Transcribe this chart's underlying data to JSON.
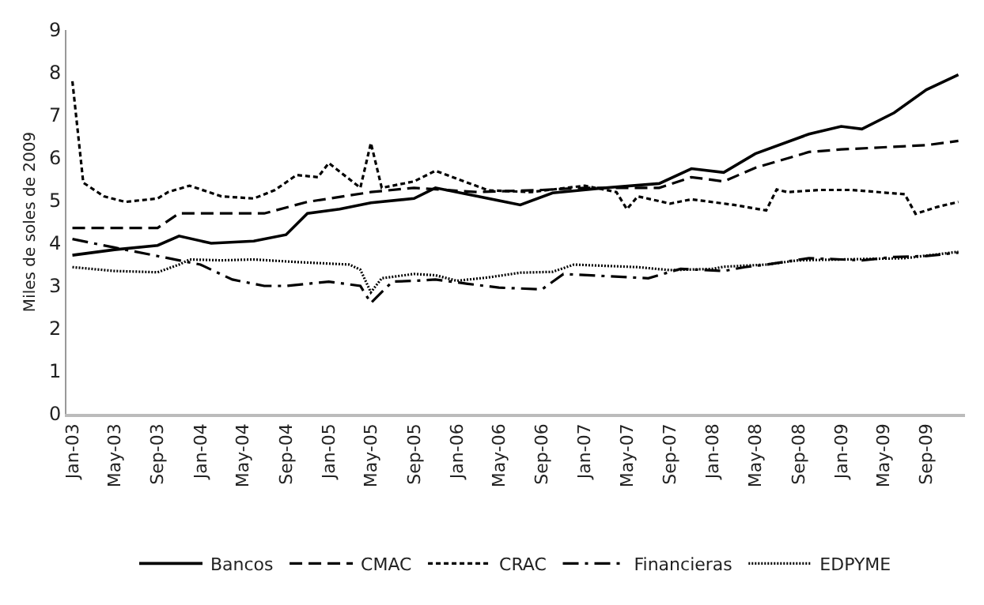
{
  "chart_data": {
    "type": "line",
    "ylabel": "Miles de soles de 2009",
    "ylim": [
      0,
      9
    ],
    "yticks": [
      0,
      1,
      2,
      3,
      4,
      5,
      6,
      7,
      8,
      9
    ],
    "xlim": [
      "2002-12-15",
      "2009-12-20"
    ],
    "xticks": [
      {
        "value": "2003-01",
        "label": "Jan-03"
      },
      {
        "value": "2003-05",
        "label": "May-03"
      },
      {
        "value": "2003-09",
        "label": "Sep-03"
      },
      {
        "value": "2004-01",
        "label": "Jan-04"
      },
      {
        "value": "2004-05",
        "label": "May-04"
      },
      {
        "value": "2004-09",
        "label": "Sep-04"
      },
      {
        "value": "2005-01",
        "label": "Jan-05"
      },
      {
        "value": "2005-05",
        "label": "May-05"
      },
      {
        "value": "2005-09",
        "label": "Sep-05"
      },
      {
        "value": "2006-01",
        "label": "Jan-06"
      },
      {
        "value": "2006-05",
        "label": "May-06"
      },
      {
        "value": "2006-09",
        "label": "Sep-06"
      },
      {
        "value": "2007-01",
        "label": "Jan-07"
      },
      {
        "value": "2007-05",
        "label": "May-07"
      },
      {
        "value": "2007-09",
        "label": "Sep-07"
      },
      {
        "value": "2008-01",
        "label": "Jan-08"
      },
      {
        "value": "2008-05",
        "label": "May-08"
      },
      {
        "value": "2008-09",
        "label": "Sep-08"
      },
      {
        "value": "2009-01",
        "label": "Jan-09"
      },
      {
        "value": "2009-05",
        "label": "May-09"
      },
      {
        "value": "2009-09",
        "label": "Sep-09"
      }
    ],
    "legend": "bottom",
    "marker": "none",
    "series": [
      {
        "name": "Bancos",
        "color": "#000000",
        "line_style": "solid",
        "x": [
          "2003-01",
          "2003-05",
          "2003-09",
          "2003-11",
          "2004-02",
          "2004-06",
          "2004-09",
          "2004-11",
          "2005-02",
          "2005-05",
          "2005-09",
          "2005-11",
          "2006-03",
          "2006-07",
          "2006-10",
          "2007-03",
          "2007-08",
          "2007-11",
          "2008-02",
          "2008-05",
          "2008-10",
          "2009-01",
          "2009-03",
          "2009-06",
          "2009-09",
          "2009-12"
        ],
        "values": [
          3.72,
          3.85,
          3.95,
          4.17,
          4.0,
          4.05,
          4.2,
          4.7,
          4.8,
          4.95,
          5.05,
          5.3,
          5.1,
          4.9,
          5.18,
          5.3,
          5.4,
          5.75,
          5.66,
          6.1,
          6.56,
          6.74,
          6.68,
          7.06,
          7.6,
          7.95
        ]
      },
      {
        "name": "CMAC",
        "color": "#000000",
        "line_style": "dashed",
        "x": [
          "2003-01",
          "2003-09",
          "2003-11",
          "2004-07",
          "2004-11",
          "2005-05",
          "2005-09",
          "2006-03",
          "2006-09",
          "2007-01",
          "2007-08",
          "2007-11",
          "2008-02",
          "2008-05",
          "2008-10",
          "2009-01",
          "2009-05",
          "2009-09",
          "2009-12"
        ],
        "values": [
          4.36,
          4.36,
          4.7,
          4.7,
          4.97,
          5.2,
          5.3,
          5.2,
          5.25,
          5.3,
          5.3,
          5.55,
          5.45,
          5.77,
          6.14,
          6.2,
          6.25,
          6.3,
          6.4
        ]
      },
      {
        "name": "CRAC",
        "color": "#000000",
        "line_style": "short dashed",
        "x": [
          "2003-01",
          "2003-02",
          "2003-04",
          "2003-06",
          "2003-09",
          "2003-10",
          "2003-12",
          "2004-03",
          "2004-06",
          "2004-08",
          "2004-10",
          "2004-12",
          "2005-01",
          "2005-04",
          "2005-05",
          "2005-06",
          "2005-09",
          "2005-11",
          "2006-04",
          "2006-08",
          "2007-01",
          "2007-04",
          "2007-05",
          "2007-06",
          "2007-09",
          "2007-11",
          "2008-03",
          "2008-06",
          "2008-07",
          "2008-08",
          "2008-11",
          "2009-02",
          "2009-07",
          "2009-08",
          "2009-10",
          "2009-12"
        ],
        "values": [
          7.8,
          5.42,
          5.1,
          4.97,
          5.05,
          5.2,
          5.35,
          5.1,
          5.05,
          5.25,
          5.6,
          5.55,
          5.88,
          5.3,
          6.35,
          5.3,
          5.45,
          5.7,
          5.24,
          5.2,
          5.35,
          5.2,
          4.8,
          5.1,
          4.93,
          5.03,
          4.9,
          4.77,
          5.26,
          5.2,
          5.25,
          5.25,
          5.15,
          4.69,
          4.85,
          4.97
        ]
      },
      {
        "name": "Financieras",
        "color": "#000000",
        "line_style": "dash-dot",
        "x": [
          "2003-01",
          "2003-03",
          "2003-05",
          "2003-09",
          "2004-01",
          "2004-04",
          "2004-07",
          "2004-09",
          "2005-01",
          "2005-04",
          "2005-05",
          "2005-07",
          "2005-09",
          "2005-11",
          "2006-02",
          "2006-05",
          "2006-09",
          "2006-11",
          "2007-07",
          "2007-10",
          "2008-02",
          "2008-04",
          "2008-06",
          "2008-10",
          "2009-01",
          "2009-03",
          "2009-06",
          "2009-09",
          "2009-12"
        ],
        "values": [
          4.1,
          4.0,
          3.9,
          3.7,
          3.5,
          3.15,
          3.0,
          3.0,
          3.1,
          3.0,
          2.6,
          3.1,
          3.12,
          3.15,
          3.05,
          2.96,
          2.92,
          3.28,
          3.18,
          3.4,
          3.35,
          3.44,
          3.5,
          3.65,
          3.62,
          3.6,
          3.68,
          3.7,
          3.78
        ]
      },
      {
        "name": "EDPYME",
        "color": "#000000",
        "line_style": "dotted",
        "x": [
          "2003-01",
          "2003-05",
          "2003-09",
          "2003-11",
          "2003-12",
          "2004-03",
          "2004-06",
          "2004-10",
          "2005-03",
          "2005-04",
          "2005-05",
          "2005-06",
          "2005-09",
          "2005-11",
          "2006-01",
          "2006-04",
          "2006-07",
          "2006-10",
          "2006-12",
          "2007-06",
          "2007-09",
          "2008-01",
          "2008-02",
          "2008-06",
          "2008-09",
          "2009-01",
          "2009-07",
          "2009-12"
        ],
        "values": [
          3.44,
          3.35,
          3.32,
          3.5,
          3.62,
          3.6,
          3.62,
          3.56,
          3.5,
          3.38,
          2.85,
          3.18,
          3.28,
          3.25,
          3.12,
          3.2,
          3.31,
          3.33,
          3.5,
          3.44,
          3.37,
          3.4,
          3.45,
          3.5,
          3.6,
          3.62,
          3.65,
          3.8
        ]
      }
    ]
  }
}
